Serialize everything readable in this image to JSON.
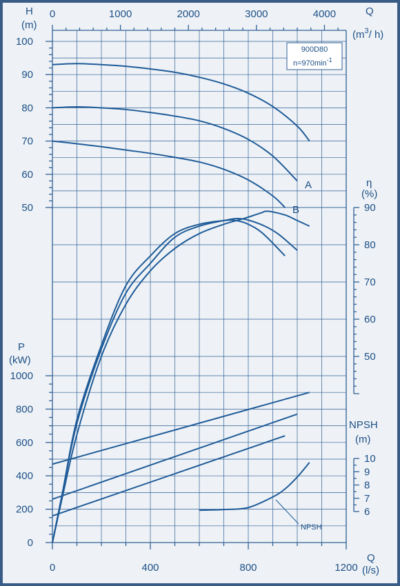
{
  "colors": {
    "curve": "#1f5b98",
    "grid": "#2f5f95",
    "text": "#1d4f86",
    "frame": "#3a5d88",
    "background": "#eef2f6"
  },
  "legend": {
    "line1": "900D80",
    "line2": "n=970min",
    "line2_sup": "-1"
  },
  "axes": {
    "h_title": "H",
    "h_unit": "(m)",
    "eta_title": "η",
    "eta_unit": "(%)",
    "p_title": "P",
    "p_unit": "(kW)",
    "npsh_title": "NPSH",
    "npsh_unit": "(m)",
    "q_title": "Q",
    "q_unit_top": "(m",
    "q_unit_top_sup": "3",
    "q_unit_top_end": "/ h)",
    "q_unit_bottom": "(l/s)"
  },
  "chart_data": {
    "type": "line",
    "x_ls": {
      "label": "Q (l/s)",
      "ticks": [
        0,
        400,
        800,
        1200
      ],
      "range": [
        0,
        1200
      ]
    },
    "x_m3h": {
      "label": "Q (m3/h)",
      "ticks": [
        0,
        1000,
        2000,
        3000,
        4000
      ],
      "range": [
        0,
        4320
      ]
    },
    "head": {
      "label": "H (m)",
      "ticks": [
        50,
        60,
        70,
        80,
        90,
        100
      ],
      "range": [
        50,
        100
      ],
      "series": [
        {
          "name": "",
          "x": [
            0,
            100,
            200,
            300,
            400,
            500,
            600,
            700,
            800,
            900,
            1000,
            1050
          ],
          "y": [
            93,
            93.3,
            93,
            92.5,
            91.7,
            90.7,
            89.2,
            87.2,
            84.4,
            80.4,
            74.5,
            70
          ]
        },
        {
          "name": "A",
          "x": [
            0,
            100,
            200,
            300,
            400,
            500,
            600,
            700,
            800,
            900,
            1000
          ],
          "y": [
            80,
            80.3,
            80,
            79.5,
            78.6,
            77.5,
            76.1,
            73.8,
            70.5,
            65.5,
            58
          ]
        },
        {
          "name": "B",
          "x": [
            0,
            100,
            200,
            300,
            400,
            500,
            600,
            700,
            800,
            900,
            950
          ],
          "y": [
            70,
            69.2,
            68.3,
            67.3,
            66.3,
            65.1,
            63.7,
            61.5,
            58.3,
            53.5,
            50
          ]
        }
      ]
    },
    "efficiency": {
      "label": "η (%)",
      "ticks": [
        50,
        60,
        70,
        80,
        90
      ],
      "range": [
        45,
        90
      ],
      "series": [
        {
          "name": "",
          "x": [
            0,
            40,
            100,
            200,
            300,
            400,
            500,
            600,
            700,
            780,
            850,
            880,
            950,
            1000,
            1050
          ],
          "y": [
            0,
            12,
            29,
            50,
            64,
            73,
            79,
            83,
            85.5,
            87,
            88.5,
            89,
            88,
            86.5,
            85
          ]
        },
        {
          "name": "A",
          "x": [
            0,
            40,
            100,
            200,
            300,
            400,
            500,
            600,
            700,
            770,
            850,
            920,
            1000
          ],
          "y": [
            0,
            13,
            32,
            52,
            67,
            75,
            82,
            85,
            86.5,
            87,
            85.5,
            83,
            78.5
          ]
        },
        {
          "name": "B",
          "x": [
            0,
            40,
            100,
            200,
            300,
            400,
            500,
            600,
            700,
            750,
            800,
            860,
            950
          ],
          "y": [
            0,
            13,
            33,
            53,
            69,
            77,
            83,
            85.5,
            86.5,
            86.5,
            85.5,
            83,
            77
          ]
        }
      ]
    },
    "power": {
      "label": "P (kW)",
      "ticks": [
        0,
        200,
        400,
        600,
        800,
        1000
      ],
      "range": [
        0,
        1000
      ],
      "series": [
        {
          "name": "",
          "x": [
            0,
            1050
          ],
          "y": [
            470,
            900
          ]
        },
        {
          "name": "A",
          "x": [
            0,
            1000
          ],
          "y": [
            260,
            770
          ]
        },
        {
          "name": "B",
          "x": [
            0,
            950
          ],
          "y": [
            160,
            640
          ]
        }
      ]
    },
    "npsh": {
      "label": "NPSH (m)",
      "ticks": [
        6,
        7,
        8,
        9,
        10
      ],
      "range": [
        6,
        10
      ],
      "series": [
        {
          "name": "NPSH",
          "x": [
            600,
            700,
            800,
            900,
            950,
            1000,
            1050
          ],
          "y": [
            6.1,
            6.15,
            6.3,
            7.1,
            7.7,
            8.6,
            9.7
          ]
        }
      ]
    },
    "curve_labels": [
      "A",
      "B"
    ],
    "annotation": "NPSH"
  }
}
